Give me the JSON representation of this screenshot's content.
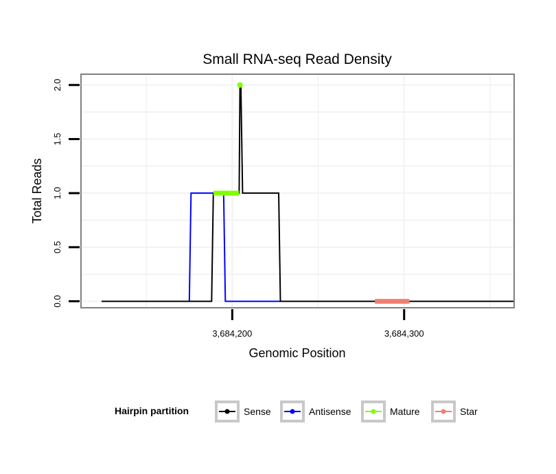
{
  "chart_data": {
    "type": "line",
    "title": "Small RNA-seq Read Density",
    "xlabel": "Genomic Position",
    "ylabel": "Total Reads",
    "xlim": [
      3684112,
      3684364
    ],
    "ylim": [
      -0.06,
      2.1
    ],
    "x_ticks": [
      3684200,
      3684300
    ],
    "x_tick_labels": [
      "3,684,200",
      "3,684,300"
    ],
    "y_ticks": [
      0,
      0.5,
      1,
      1.5,
      2
    ],
    "y_tick_labels": [
      "0.0",
      "0.5",
      "1.0",
      "1.5",
      "2.0"
    ],
    "grid": true,
    "legend": {
      "title": "Hairpin partition",
      "placement": "bottom"
    },
    "series": [
      {
        "name": "Sense",
        "color": "#000000",
        "x": [
          3684124,
          3684188,
          3684189,
          3684204,
          3684204.5,
          3684205,
          3684206,
          3684227,
          3684228,
          3684364
        ],
        "y": [
          0,
          0,
          1,
          1,
          2,
          2,
          1,
          1,
          0,
          0
        ]
      },
      {
        "name": "Antisense",
        "color": "#0000ff",
        "x": [
          3684175,
          3684176,
          3684195,
          3684196,
          3684228
        ],
        "y": [
          0,
          1,
          1,
          0,
          0
        ]
      },
      {
        "name": "Mature",
        "color": "#7fff00",
        "x": [
          3684189,
          3684204
        ],
        "y": [
          1,
          1
        ],
        "point": {
          "x": 3684204.5,
          "y": 2
        }
      },
      {
        "name": "Star",
        "color": "#f08070",
        "x": [
          3684283,
          3684303
        ],
        "y": [
          0,
          0
        ]
      }
    ]
  }
}
